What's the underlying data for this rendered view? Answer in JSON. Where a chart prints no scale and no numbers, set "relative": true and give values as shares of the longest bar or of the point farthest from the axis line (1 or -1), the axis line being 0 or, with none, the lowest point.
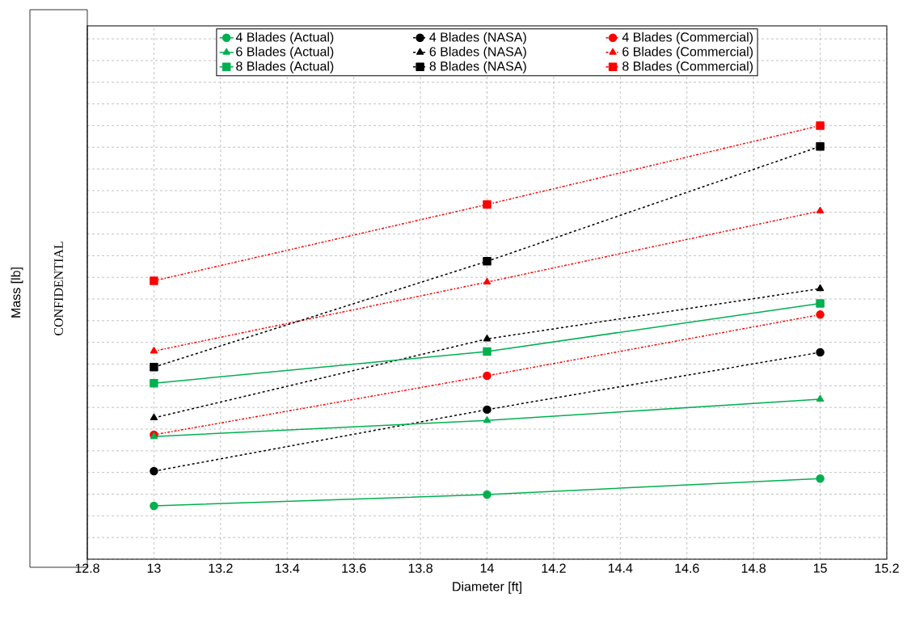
{
  "chart_data": {
    "type": "line",
    "xlabel": "Diameter [ft]",
    "ylabel": "Mass [lb]",
    "relative": true,
    "x": [
      13,
      14,
      15
    ],
    "xlim": [
      12.8,
      15.2
    ],
    "xticks": [
      12.8,
      13,
      13.2,
      13.4,
      13.6,
      13.8,
      14,
      14.2,
      14.4,
      14.6,
      14.8,
      15,
      15.2
    ],
    "grid": true,
    "legend": "top",
    "annotations": [
      "CONFIDENTIAL"
    ],
    "series": [
      {
        "name": "4 Blades (Actual)",
        "color": "#00b050",
        "marker": "circle",
        "line_style": "solid",
        "values": [
          0.123,
          0.149,
          0.186
        ]
      },
      {
        "name": "4 Blades (NASA)",
        "color": "#000000",
        "marker": "circle",
        "line_style": "dashed",
        "values": [
          0.203,
          0.345,
          0.477
        ]
      },
      {
        "name": "4 Blades (Commercial)",
        "color": "#ff0000",
        "marker": "circle",
        "line_style": "dashdot",
        "values": [
          0.287,
          0.423,
          0.564
        ]
      },
      {
        "name": "6 Blades (Actual)",
        "color": "#00b050",
        "marker": "triangle",
        "line_style": "solid",
        "values": [
          0.283,
          0.32,
          0.369
        ]
      },
      {
        "name": "6 Blades (NASA)",
        "color": "#000000",
        "marker": "triangle",
        "line_style": "dashed",
        "values": [
          0.326,
          0.508,
          0.624
        ]
      },
      {
        "name": "6 Blades (Commercial)",
        "color": "#ff0000",
        "marker": "triangle",
        "line_style": "dashdot",
        "values": [
          0.48,
          0.639,
          0.803
        ]
      },
      {
        "name": "8 Blades (Actual)",
        "color": "#00b050",
        "marker": "square",
        "line_style": "solid",
        "values": [
          0.406,
          0.479,
          0.59
        ]
      },
      {
        "name": "8 Blades (NASA)",
        "color": "#000000",
        "marker": "square",
        "line_style": "dashed",
        "values": [
          0.443,
          0.687,
          0.952
        ]
      },
      {
        "name": "8 Blades (Commercial)",
        "color": "#ff0000",
        "marker": "square",
        "line_style": "dashdot",
        "values": [
          0.642,
          0.818,
          1
        ]
      }
    ]
  }
}
